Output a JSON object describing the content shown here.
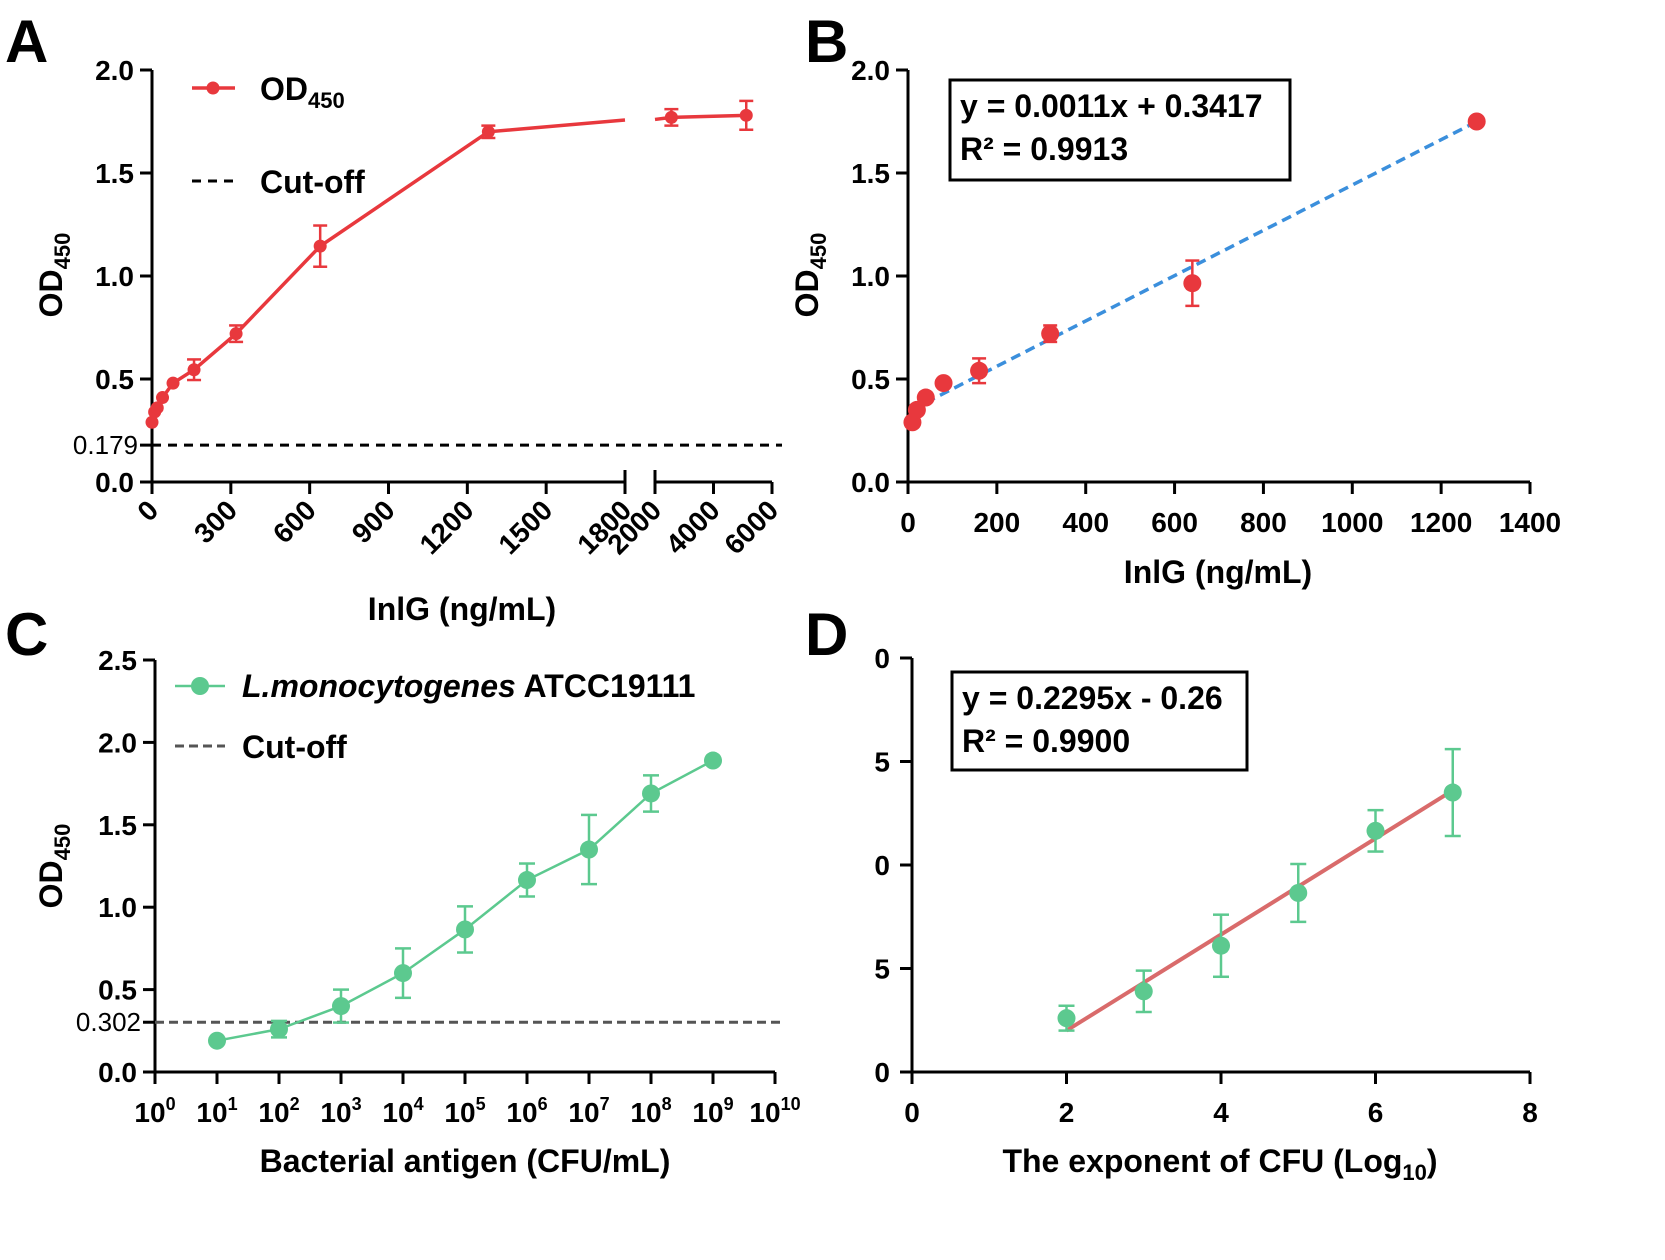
{
  "colors": {
    "red": "#e8383d",
    "blue": "#3b8fdc",
    "green": "#5cc98f",
    "fit_red": "#d96b6b",
    "black": "#000000",
    "gray": "#555555"
  },
  "chart_data": [
    {
      "panel": "A",
      "type": "line",
      "xlabel": "InlG (ng/mL)",
      "ylabel": "OD",
      "ylabel_sub": "450",
      "ylim": [
        0,
        2.0
      ],
      "yticks": [
        "0.0",
        "0.5",
        "1.0",
        "1.5",
        "2.0"
      ],
      "yticks_values": [
        0,
        0.5,
        1.0,
        1.5,
        2.0
      ],
      "extra_ytick": {
        "label": "0.179",
        "value": 0.179
      },
      "xlim_segment1": [
        0,
        1800
      ],
      "xlim_segment2": [
        2000,
        6000
      ],
      "xticks_segment1": [
        "0",
        "300",
        "600",
        "900",
        "1200",
        "1500",
        "1800"
      ],
      "xticks_segment2": [
        "2000",
        "4000",
        "6000"
      ],
      "cutoff": 0.179,
      "legend": {
        "series": "OD",
        "series_sub": "450",
        "cutoff": "Cut-off"
      },
      "series": [
        {
          "name": "OD450",
          "x": [
            0,
            10,
            20,
            40,
            80,
            160,
            320,
            640,
            1280,
            2560,
            5120
          ],
          "y": [
            0.29,
            0.34,
            0.36,
            0.41,
            0.48,
            0.545,
            0.72,
            1.145,
            1.7,
            1.77,
            1.78
          ],
          "err": [
            0.02,
            0.02,
            0.02,
            0.02,
            0.02,
            0.05,
            0.04,
            0.1,
            0.03,
            0.04,
            0.07
          ]
        }
      ]
    },
    {
      "panel": "B",
      "type": "scatter",
      "xlabel": "InlG (ng/mL)",
      "ylabel": "OD",
      "ylabel_sub": "450",
      "xlim": [
        0,
        1400
      ],
      "ylim": [
        0,
        2.0
      ],
      "xticks": [
        "0",
        "200",
        "400",
        "600",
        "800",
        "1000",
        "1200",
        "1400"
      ],
      "xticks_values": [
        0,
        200,
        400,
        600,
        800,
        1000,
        1200,
        1400
      ],
      "yticks": [
        "0.0",
        "0.5",
        "1.0",
        "1.5",
        "2.0"
      ],
      "yticks_values": [
        0,
        0.5,
        1.0,
        1.5,
        2.0
      ],
      "equation": "y = 0.0011x + 0.3417",
      "r2": "R² = 0.9913",
      "fit": {
        "slope": 0.0011,
        "intercept": 0.3417,
        "x_range": [
          40,
          1280
        ]
      },
      "series": [
        {
          "name": "OD450",
          "x": [
            10,
            20,
            40,
            80,
            160,
            320,
            640,
            1280
          ],
          "y": [
            0.29,
            0.35,
            0.41,
            0.48,
            0.54,
            0.72,
            0.965,
            1.75
          ],
          "err": [
            0,
            0,
            0,
            0,
            0.06,
            0.04,
            0.11,
            0
          ]
        }
      ]
    },
    {
      "panel": "C",
      "type": "line",
      "xlabel": "Bacterial antigen (CFU/mL)",
      "ylabel": "OD",
      "ylabel_sub": "450",
      "xscale": "log",
      "xlim_exponent": [
        0,
        10
      ],
      "ylim": [
        0,
        2.5
      ],
      "xticks_exponents": [
        "0",
        "1",
        "2",
        "3",
        "4",
        "5",
        "6",
        "7",
        "8",
        "9",
        "10"
      ],
      "xtick_base": "10",
      "yticks": [
        "0.0",
        "0.5",
        "1.0",
        "1.5",
        "2.0",
        "2.5"
      ],
      "yticks_values": [
        0,
        0.5,
        1.0,
        1.5,
        2.0,
        2.5
      ],
      "extra_ytick": {
        "label": "0.302",
        "value": 0.302
      },
      "cutoff": 0.302,
      "legend": {
        "series_italic": "L.monocytogenes",
        "series_rest": "ATCC19111",
        "cutoff": "Cut-off"
      },
      "series": [
        {
          "name": "L.monocytogenes ATCC19111",
          "x_exponent": [
            1,
            2,
            3,
            4,
            5,
            6,
            7,
            8,
            9
          ],
          "y": [
            0.19,
            0.26,
            0.4,
            0.6,
            0.865,
            1.165,
            1.35,
            1.69,
            1.89
          ],
          "err": [
            0,
            0.05,
            0.1,
            0.15,
            0.14,
            0.1,
            0.21,
            0.11,
            0
          ]
        }
      ]
    },
    {
      "panel": "D",
      "type": "scatter",
      "xlabel": "The exponent of CFU (Log",
      "xlabel_sub": "10",
      "xlabel_end": ")",
      "ylabel": "",
      "xlim": [
        0,
        8
      ],
      "ylim": [
        0,
        2.0
      ],
      "xticks": [
        "0",
        "2",
        "4",
        "6",
        "8"
      ],
      "xticks_values": [
        0,
        2,
        4,
        6,
        8
      ],
      "yticks": [
        "0",
        "5",
        "0",
        "5",
        "0"
      ],
      "yticks_values": [
        0,
        0.5,
        1.0,
        1.5,
        2.0
      ],
      "equation": "y = 0.2295x - 0.26",
      "r2": "R² = 0.9900",
      "fit": {
        "x_range": [
          2,
          7
        ],
        "y_range": [
          0.2,
          1.36
        ]
      },
      "series": [
        {
          "name": "OD450",
          "x": [
            2,
            3,
            4,
            5,
            6,
            7
          ],
          "y": [
            0.26,
            0.39,
            0.61,
            0.865,
            1.165,
            1.35
          ],
          "err": [
            0.06,
            0.1,
            0.15,
            0.14,
            0.1,
            0.21
          ]
        }
      ]
    }
  ]
}
